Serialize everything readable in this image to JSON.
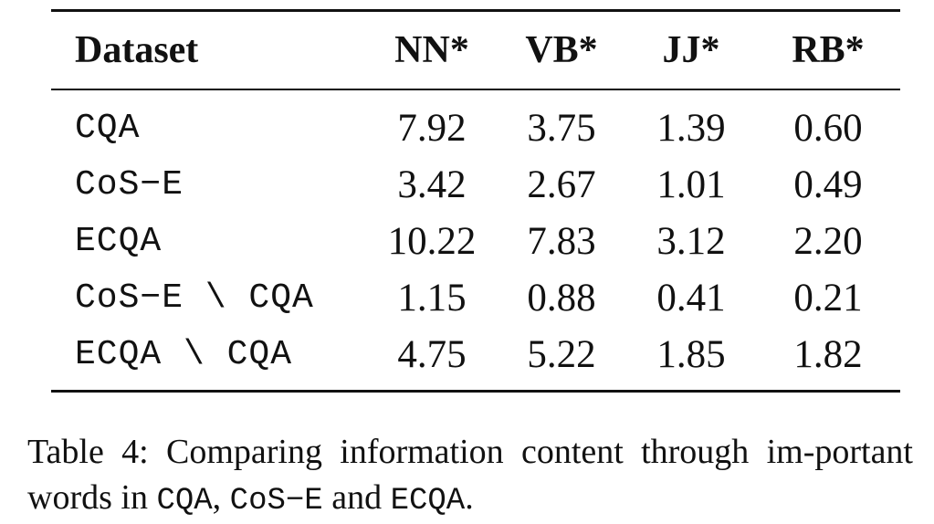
{
  "table": {
    "headers": [
      "Dataset",
      "NN*",
      "VB*",
      "JJ*",
      "RB*"
    ],
    "rows": [
      {
        "dataset": "CQA",
        "nn": "7.92",
        "vb": "3.75",
        "jj": "1.39",
        "rb": "0.60"
      },
      {
        "dataset": "CoS−E",
        "nn": "3.42",
        "vb": "2.67",
        "jj": "1.01",
        "rb": "0.49"
      },
      {
        "dataset": "ECQA",
        "nn": "10.22",
        "vb": "7.83",
        "jj": "3.12",
        "rb": "2.20"
      },
      {
        "dataset": "CoS−E \\ CQA",
        "nn": "1.15",
        "vb": "0.88",
        "jj": "0.41",
        "rb": "0.21"
      },
      {
        "dataset": "ECQA \\ CQA",
        "nn": "4.75",
        "vb": "5.22",
        "jj": "1.85",
        "rb": "1.82"
      }
    ]
  },
  "caption": {
    "prefix": "Table 4:  Comparing information content through im-portant words in ",
    "ds1": "CQA",
    "sep1": ", ",
    "ds2": "CoS−E",
    "sep2": " and ",
    "ds3": "ECQA",
    "suffix": "."
  }
}
